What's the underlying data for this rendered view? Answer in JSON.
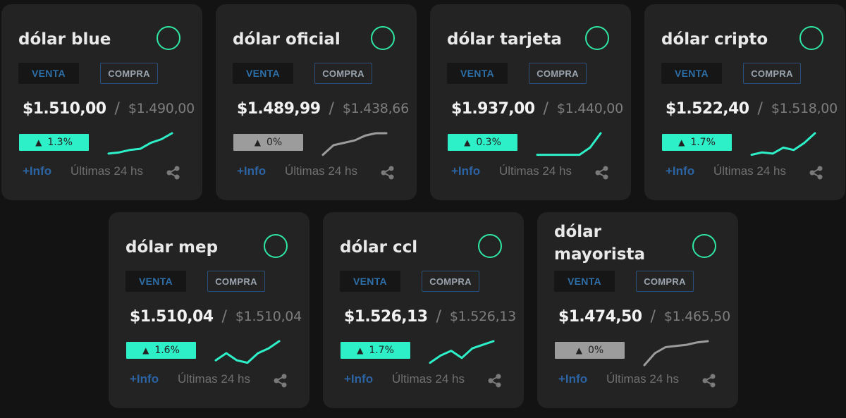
{
  "venta_label": "VENTA",
  "compra_label": "COMPRA",
  "info_label": "+Info",
  "range_label": "Últimas 24 hs",
  "colors": {
    "background": "#131313",
    "card": "#232323",
    "accent_up": "#2ef0c8",
    "flat": "#9c9c9c",
    "ring": "#2fe6a4",
    "link": "#2c63a2"
  },
  "cards": [
    {
      "title": "dólar blue",
      "venta": "$1.510,00",
      "compra": "$1.490,00",
      "change": "1.3%",
      "trend": "up",
      "spark": [
        0.15,
        0.2,
        0.3,
        0.35,
        0.6,
        0.75,
        1.0
      ]
    },
    {
      "title": "dólar oficial",
      "venta": "$1.489,99",
      "compra": "$1.438,66",
      "change": "0%",
      "trend": "flat",
      "spark": [
        0.1,
        0.5,
        0.6,
        0.7,
        0.9,
        1.0,
        1.0
      ]
    },
    {
      "title": "dólar tarjeta",
      "venta": "$1.937,00",
      "compra": "$1.440,00",
      "change": "0.3%",
      "trend": "up",
      "spark": [
        0.1,
        0.1,
        0.1,
        0.1,
        0.1,
        0.4,
        1.0
      ]
    },
    {
      "title": "dólar cripto",
      "venta": "$1.522,40",
      "compra": "$1.518,00",
      "change": "1.7%",
      "trend": "up",
      "spark": [
        0.1,
        0.2,
        0.15,
        0.4,
        0.3,
        0.6,
        1.0
      ]
    },
    {
      "title": "dólar mep",
      "venta": "$1.510,04",
      "compra": "$1.510,04",
      "change": "1.6%",
      "trend": "up",
      "spark": [
        0.2,
        0.5,
        0.2,
        0.1,
        0.5,
        0.7,
        1.0
      ]
    },
    {
      "title": "dólar ccl",
      "venta": "$1.526,13",
      "compra": "$1.526,13",
      "change": "1.7%",
      "trend": "up",
      "spark": [
        0.1,
        0.4,
        0.6,
        0.3,
        0.7,
        0.85,
        1.0
      ]
    },
    {
      "title": "dólar mayorista",
      "venta": "$1.474,50",
      "compra": "$1.465,50",
      "change": "0%",
      "trend": "flat",
      "spark": [
        0.0,
        0.5,
        0.75,
        0.8,
        0.85,
        0.95,
        1.0
      ]
    }
  ]
}
